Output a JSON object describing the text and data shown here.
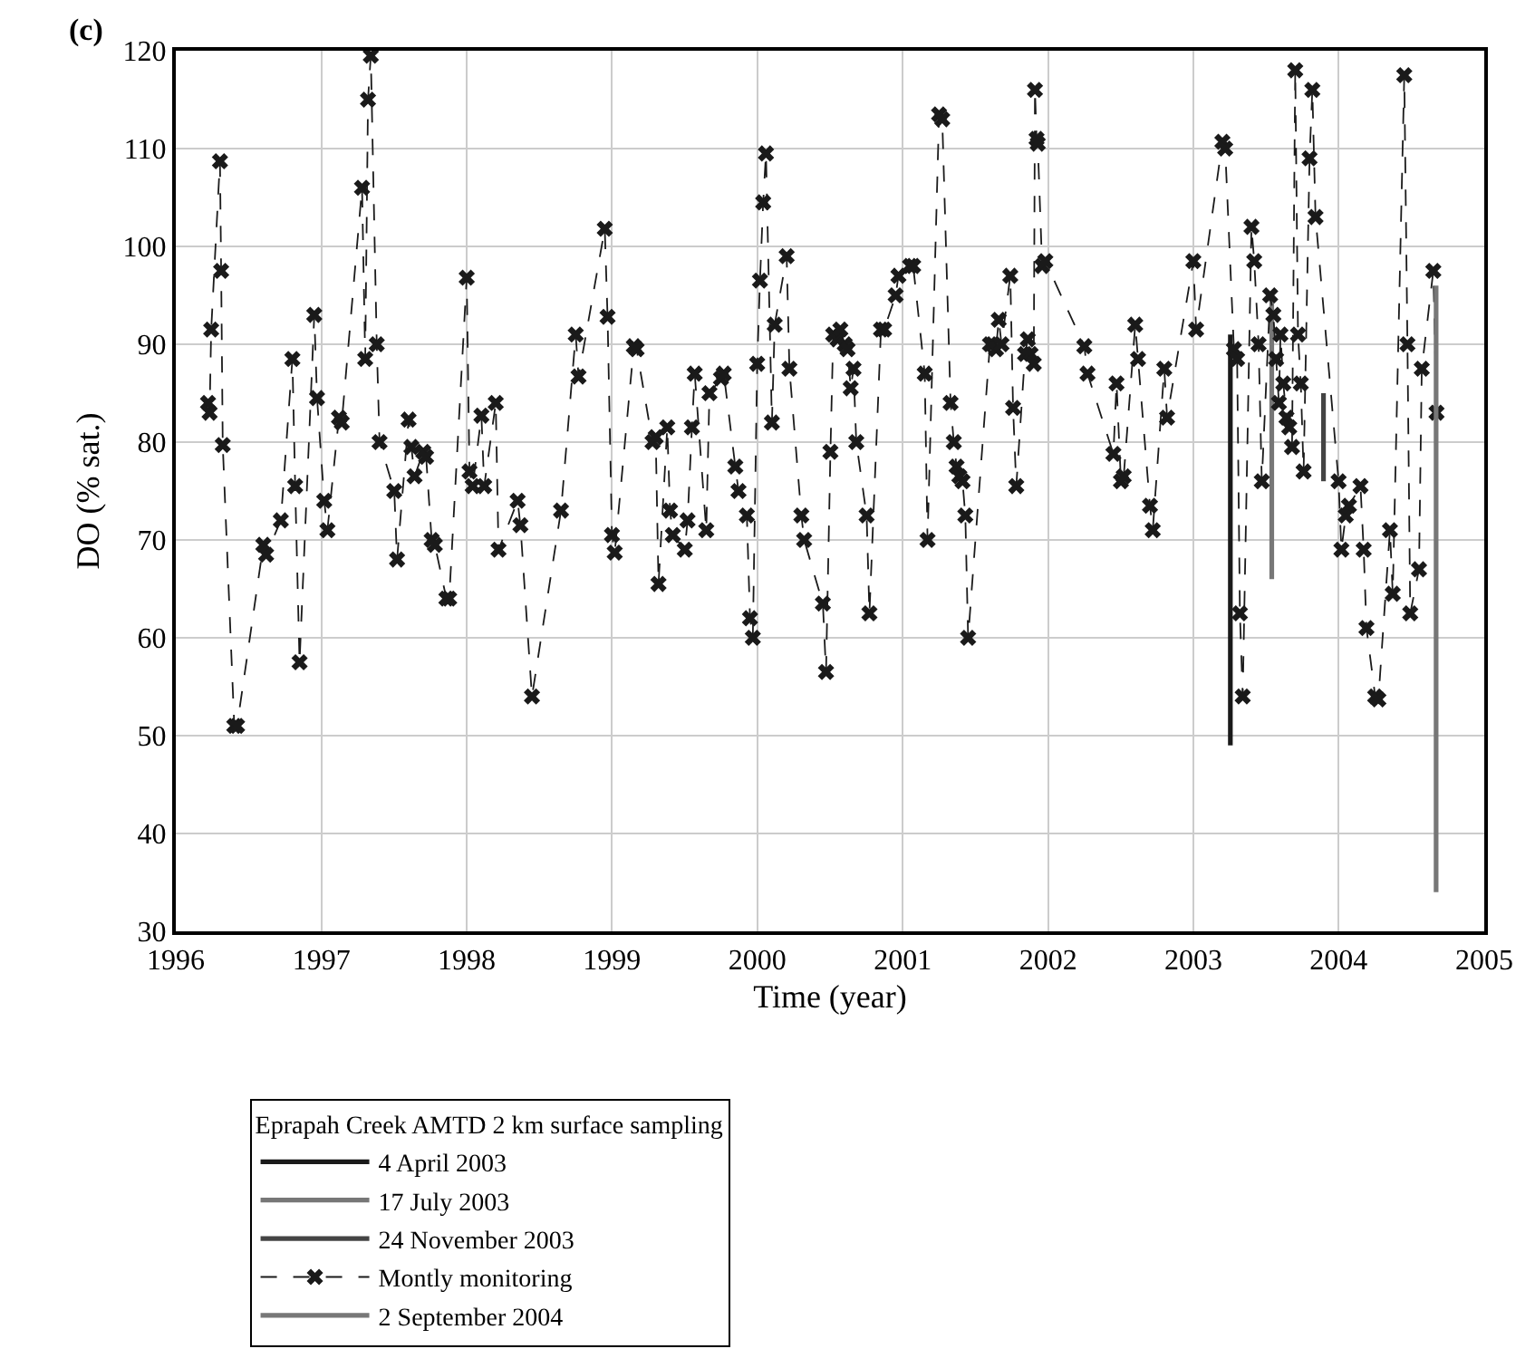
{
  "chart_data": {
    "type": "line",
    "xlabel": "Time (year)",
    "ylabel": "DO (% sat.)",
    "legend_title": "Eprapah Creek AMTD 2 km surface sampling",
    "annotations": [
      "(c)"
    ],
    "xlim": [
      "1996",
      "2005"
    ],
    "xticks": [
      "1996",
      "1997",
      "1998",
      "1999",
      "2000",
      "2001",
      "2002",
      "2003",
      "2004",
      "2005"
    ],
    "ylim": [
      30,
      120
    ],
    "yticks": [
      30,
      40,
      50,
      60,
      70,
      80,
      90,
      100,
      110,
      120
    ],
    "grid": true,
    "legend": "bottom",
    "series": [
      {
        "name": "4 April 2003",
        "color": "#1a1a1a",
        "line_style": "solid",
        "marker": "none",
        "x": [
          "2003-04-04",
          "2003-04-04"
        ],
        "values": [
          49,
          91
        ]
      },
      {
        "name": "17 July 2003",
        "color": "#777777",
        "line_style": "solid",
        "marker": "none",
        "x": [
          "2003-07-17",
          "2003-07-17"
        ],
        "values": [
          66,
          95
        ]
      },
      {
        "name": "24 November 2003",
        "color": "#444444",
        "line_style": "solid",
        "marker": "none",
        "x": [
          "2003-11-24",
          "2003-11-24"
        ],
        "values": [
          76,
          85
        ]
      },
      {
        "name": "Montly monitoring",
        "color": "#1a1a1a",
        "line_style": "dashed",
        "marker": "cross",
        "x": [
          "1996-03-22",
          "1996-03-26",
          "1996-03-30",
          "1996-04-21",
          "1996-04-24",
          "1996-04-28",
          "1996-05-27",
          "1996-06-03",
          "1996-08-08",
          "1996-08-15",
          "1996-09-21",
          "1996-10-20",
          "1996-10-27",
          "1996-11-07",
          "1996-12-14",
          "1996-12-21",
          "1997-01-08",
          "1997-01-16",
          "1997-02-14",
          "1997-02-21",
          "1997-04-13",
          "1997-04-21",
          "1997-04-28",
          "1997-05-05",
          "1997-05-20",
          "1997-05-27",
          "1997-07-03",
          "1997-07-10",
          "1997-08-08",
          "1997-08-15",
          "1997-08-23",
          "1997-09-14",
          "1997-09-21",
          "1997-10-05",
          "1997-10-13",
          "1997-11-11",
          "1997-11-18",
          "1998-01-01",
          "1998-01-08",
          "1998-01-16",
          "1998-02-07",
          "1998-02-14",
          "1998-03-15",
          "1998-03-22",
          "1998-05-09",
          "1998-05-16",
          "1998-06-14",
          "1998-08-26",
          "1998-10-02",
          "1998-10-09",
          "1998-12-14",
          "1998-12-21",
          "1999-01-01",
          "1999-01-08",
          "1999-02-25",
          "1999-03-04",
          "1999-04-13",
          "1999-04-21",
          "1999-04-28",
          "1999-05-20",
          "1999-05-27",
          "1999-06-03",
          "1999-07-03",
          "1999-07-10",
          "1999-07-21",
          "1999-07-28",
          "1999-08-26",
          "1999-09-03",
          "1999-10-02",
          "1999-10-09",
          "1999-11-07",
          "1999-11-15",
          "1999-12-06",
          "1999-12-14",
          "1999-12-21",
          "2000-01-01",
          "2000-01-08",
          "2000-01-16",
          "2000-01-23",
          "2000-02-07",
          "2000-02-14",
          "2000-03-15",
          "2000-03-22",
          "2000-04-21",
          "2000-04-28",
          "2000-06-14",
          "2000-06-22",
          "2000-07-03",
          "2000-07-10",
          "2000-07-21",
          "2000-07-28",
          "2000-08-08",
          "2000-08-15",
          "2000-08-23",
          "2000-08-30",
          "2000-09-06",
          "2000-10-02",
          "2000-10-09",
          "2000-11-07",
          "2000-11-15",
          "2000-12-14",
          "2000-12-21",
          "2001-01-19",
          "2001-01-27",
          "2001-02-25",
          "2001-03-04",
          "2001-04-02",
          "2001-04-10",
          "2001-05-01",
          "2001-05-09",
          "2001-05-16",
          "2001-05-23",
          "2001-05-31",
          "2001-06-07",
          "2001-06-14",
          "2001-08-08",
          "2001-08-15",
          "2001-08-23",
          "2001-08-30",
          "2001-09-06",
          "2001-09-28",
          "2001-10-05",
          "2001-10-13",
          "2001-11-04",
          "2001-11-11",
          "2001-11-18",
          "2001-11-26",
          "2001-11-29",
          "2001-12-03",
          "2001-12-06",
          "2001-12-17",
          "2001-12-25",
          "2002-04-02",
          "2002-04-10",
          "2002-06-14",
          "2002-06-22",
          "2002-07-03",
          "2002-07-10",
          "2002-08-08",
          "2002-08-15",
          "2002-09-14",
          "2002-09-21",
          "2002-10-20",
          "2002-10-27",
          "2003-01-01",
          "2003-01-08",
          "2003-03-15",
          "2003-03-22",
          "2003-04-13",
          "2003-04-21",
          "2003-04-28",
          "2003-05-05",
          "2003-05-27",
          "2003-06-03",
          "2003-06-14",
          "2003-06-22",
          "2003-07-13",
          "2003-07-21",
          "2003-07-28",
          "2003-08-04",
          "2003-08-08",
          "2003-08-15",
          "2003-08-23",
          "2003-08-30",
          "2003-09-06",
          "2003-09-14",
          "2003-09-21",
          "2003-09-28",
          "2003-10-05",
          "2003-10-20",
          "2003-10-27",
          "2003-11-04",
          "2004-01-01",
          "2004-01-08",
          "2004-01-19",
          "2004-01-27",
          "2004-02-25",
          "2004-03-04",
          "2004-03-11",
          "2004-04-02",
          "2004-04-10",
          "2004-05-09",
          "2004-05-16",
          "2004-06-14",
          "2004-06-22",
          "2004-06-29",
          "2004-07-21",
          "2004-07-28",
          "2004-08-26",
          "2004-09-03"
        ],
        "values": [
          84,
          83,
          91.5,
          108.7,
          97.5,
          79.7,
          51,
          51,
          69.5,
          68.5,
          72,
          88.5,
          75.5,
          57.5,
          93,
          84.5,
          74,
          71,
          82.5,
          82,
          106,
          88.5,
          115,
          119.5,
          90,
          80,
          75,
          68,
          82.3,
          79.5,
          76.5,
          79,
          78.5,
          70,
          69.5,
          64,
          64,
          96.8,
          77,
          75.5,
          82.7,
          75.5,
          84,
          69,
          74,
          71.5,
          54,
          73,
          91,
          86.7,
          101.8,
          92.8,
          70.5,
          68.7,
          89.8,
          89.5,
          80,
          80.5,
          65.5,
          81.5,
          73,
          70.5,
          69,
          72,
          81.5,
          87,
          71,
          85,
          86.5,
          87,
          77.5,
          75,
          72.5,
          62,
          60,
          88,
          96.5,
          104.5,
          109.5,
          82,
          92,
          99,
          87.5,
          72.5,
          70,
          63.5,
          56.5,
          79,
          91,
          90.5,
          91.5,
          90,
          89.5,
          85.5,
          87.5,
          80,
          72.5,
          62.5,
          91.5,
          91.5,
          95,
          97,
          98,
          98,
          87,
          70,
          113.5,
          113,
          84,
          80,
          77.5,
          76.5,
          76,
          72.5,
          60,
          90,
          90,
          89.5,
          92.5,
          90,
          97,
          83.5,
          75.5,
          89,
          90.5,
          89,
          88,
          116,
          111,
          110.5,
          98,
          98.5,
          89.8,
          87,
          78.8,
          86,
          76,
          76.5,
          92,
          88.5,
          73.5,
          71,
          87.5,
          82.5,
          98.5,
          91.5,
          110.7,
          110,
          89.5,
          88.5,
          62.5,
          54,
          102,
          98.5,
          90,
          76,
          95,
          93,
          88.5,
          84,
          91,
          86,
          82.5,
          81.5,
          79.5,
          118,
          91,
          86,
          77,
          109,
          116,
          103,
          76,
          69,
          72.5,
          73.5,
          75.5,
          69,
          61,
          54,
          53.7,
          71,
          64.5,
          117.5,
          90,
          62.5,
          67,
          87.5,
          97.5,
          83
        ]
      },
      {
        "name": "2 September 2004",
        "color": "#777777",
        "line_style": "solid",
        "marker": "none",
        "x": [
          "2004-09-02",
          "2004-09-02"
        ],
        "values": [
          34,
          96
        ]
      }
    ]
  }
}
